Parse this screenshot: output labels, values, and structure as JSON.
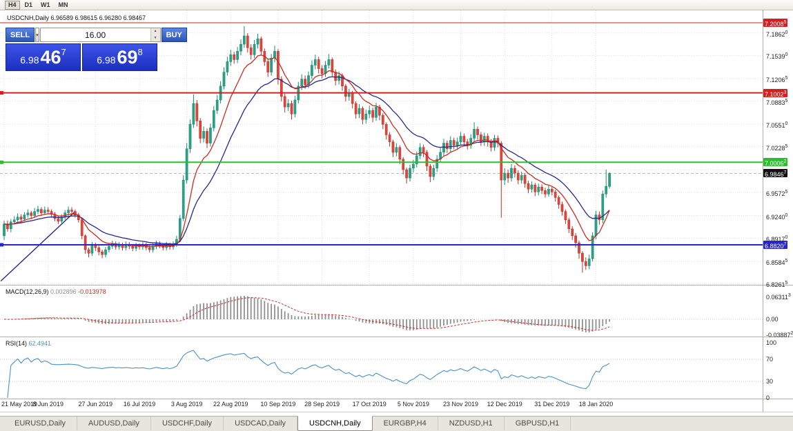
{
  "toolbar": {
    "timeframes": [
      {
        "label": "H4",
        "active": true
      },
      {
        "label": "D1",
        "active": false
      },
      {
        "label": "W1",
        "active": false
      },
      {
        "label": "MN",
        "active": false
      }
    ]
  },
  "chart": {
    "title": "USDCNH,Daily 6.96589 6.98615 6.96280 6.98467"
  },
  "icons": {
    "dropdown": "▾",
    "up": "▲",
    "down": "▼"
  },
  "trade_panel": {
    "sell_label": "SELL",
    "buy_label": "BUY",
    "volume": "16.00",
    "sell_price": {
      "prefix": "6.98",
      "big": "46",
      "sup": "7"
    },
    "buy_price": {
      "prefix": "6.98",
      "big": "69",
      "sup": "8"
    }
  },
  "chart_data": {
    "type": "candlestick",
    "symbol": "USDCNH",
    "timeframe": "Daily",
    "ohlc": {
      "open": "6.96589",
      "high": "6.98615",
      "low": "6.96280",
      "close": "6.98467"
    },
    "up_color": "#2aa186",
    "up_stroke": "#1d8a70",
    "down_color": "#e2443a",
    "down_stroke": "#b3332c",
    "candles": [
      [
        6.895,
        6.917,
        6.889,
        6.912
      ],
      [
        6.912,
        6.917,
        6.901,
        6.905
      ],
      [
        6.905,
        6.919,
        6.9,
        6.915
      ],
      [
        6.915,
        6.923,
        6.911,
        6.918
      ],
      [
        6.918,
        6.927,
        6.915,
        6.922
      ],
      [
        6.922,
        6.926,
        6.914,
        6.919
      ],
      [
        6.919,
        6.929,
        6.916,
        6.925
      ],
      [
        6.925,
        6.933,
        6.921,
        6.928
      ],
      [
        6.928,
        6.931,
        6.919,
        6.924
      ],
      [
        6.924,
        6.935,
        6.921,
        6.93
      ],
      [
        6.93,
        6.938,
        6.926,
        6.933
      ],
      [
        6.933,
        6.936,
        6.924,
        6.928
      ],
      [
        6.928,
        6.937,
        6.925,
        6.932
      ],
      [
        6.932,
        6.936,
        6.926,
        6.93
      ],
      [
        6.93,
        6.933,
        6.922,
        6.926
      ],
      [
        6.926,
        6.929,
        6.916,
        6.92
      ],
      [
        6.92,
        6.924,
        6.912,
        6.916
      ],
      [
        6.916,
        6.926,
        6.913,
        6.922
      ],
      [
        6.922,
        6.932,
        6.918,
        6.928
      ],
      [
        6.928,
        6.937,
        6.924,
        6.932
      ],
      [
        6.932,
        6.936,
        6.926,
        6.93
      ],
      [
        6.93,
        6.933,
        6.921,
        6.925
      ],
      [
        6.925,
        6.928,
        6.914,
        6.918
      ],
      [
        6.918,
        6.92,
        6.89,
        6.895
      ],
      [
        6.895,
        6.897,
        6.869,
        6.875
      ],
      [
        6.875,
        6.878,
        6.864,
        6.87
      ],
      [
        6.87,
        6.886,
        6.866,
        6.882
      ],
      [
        6.882,
        6.885,
        6.873,
        6.878
      ],
      [
        6.878,
        6.881,
        6.867,
        6.872
      ],
      [
        6.872,
        6.875,
        6.863,
        6.868
      ],
      [
        6.868,
        6.879,
        6.864,
        6.875
      ],
      [
        6.875,
        6.884,
        6.871,
        6.88
      ],
      [
        6.88,
        6.888,
        6.876,
        6.884
      ],
      [
        6.884,
        6.887,
        6.875,
        6.879
      ],
      [
        6.879,
        6.886,
        6.875,
        6.882
      ],
      [
        6.882,
        6.885,
        6.874,
        6.878
      ],
      [
        6.878,
        6.887,
        6.874,
        6.883
      ],
      [
        6.883,
        6.886,
        6.876,
        6.88
      ],
      [
        6.88,
        6.883,
        6.873,
        6.877
      ],
      [
        6.877,
        6.885,
        6.873,
        6.881
      ],
      [
        6.881,
        6.884,
        6.875,
        6.879
      ],
      [
        6.879,
        6.886,
        6.875,
        6.882
      ],
      [
        6.882,
        6.885,
        6.874,
        6.878
      ],
      [
        6.878,
        6.881,
        6.871,
        6.875
      ],
      [
        6.875,
        6.884,
        6.871,
        6.88
      ],
      [
        6.88,
        6.888,
        6.876,
        6.884
      ],
      [
        6.884,
        6.887,
        6.877,
        6.881
      ],
      [
        6.881,
        6.884,
        6.874,
        6.878
      ],
      [
        6.878,
        6.886,
        6.874,
        6.882
      ],
      [
        6.882,
        6.885,
        6.875,
        6.879
      ],
      [
        6.879,
        6.887,
        6.875,
        6.883
      ],
      [
        6.883,
        6.895,
        6.879,
        6.89
      ],
      [
        6.89,
        6.925,
        6.886,
        6.92
      ],
      [
        6.92,
        6.982,
        6.916,
        6.975
      ],
      [
        6.975,
        7.028,
        6.97,
        7.02
      ],
      [
        7.02,
        7.062,
        7.014,
        7.055
      ],
      [
        7.055,
        7.098,
        7.05,
        7.085
      ],
      [
        7.085,
        7.09,
        7.052,
        7.06
      ],
      [
        7.06,
        7.064,
        7.028,
        7.035
      ],
      [
        7.035,
        7.052,
        7.029,
        7.045
      ],
      [
        7.045,
        7.049,
        7.021,
        7.028
      ],
      [
        7.028,
        7.056,
        7.023,
        7.05
      ],
      [
        7.05,
        7.081,
        7.045,
        7.075
      ],
      [
        7.075,
        7.097,
        7.07,
        7.09
      ],
      [
        7.09,
        7.117,
        7.085,
        7.11
      ],
      [
        7.11,
        7.137,
        7.105,
        7.13
      ],
      [
        7.13,
        7.152,
        7.125,
        7.145
      ],
      [
        7.145,
        7.162,
        7.139,
        7.155
      ],
      [
        7.155,
        7.159,
        7.142,
        7.148
      ],
      [
        7.148,
        7.166,
        7.143,
        7.16
      ],
      [
        7.16,
        7.177,
        7.154,
        7.17
      ],
      [
        7.17,
        7.196,
        7.165,
        7.182
      ],
      [
        7.182,
        7.186,
        7.158,
        7.165
      ],
      [
        7.165,
        7.17,
        7.148,
        7.155
      ],
      [
        7.155,
        7.176,
        7.15,
        7.17
      ],
      [
        7.17,
        7.185,
        7.164,
        7.178
      ],
      [
        7.178,
        7.181,
        7.154,
        7.16
      ],
      [
        7.16,
        7.164,
        7.139,
        7.145
      ],
      [
        7.145,
        7.149,
        7.123,
        7.13
      ],
      [
        7.13,
        7.156,
        7.125,
        7.15
      ],
      [
        7.15,
        7.168,
        7.144,
        7.16
      ],
      [
        7.16,
        7.163,
        7.112,
        7.12
      ],
      [
        7.12,
        7.124,
        7.088,
        7.095
      ],
      [
        7.095,
        7.099,
        7.072,
        7.08
      ],
      [
        7.08,
        7.091,
        7.074,
        7.085
      ],
      [
        7.085,
        7.089,
        7.062,
        7.07
      ],
      [
        7.07,
        7.096,
        7.065,
        7.09
      ],
      [
        7.09,
        7.116,
        7.085,
        7.11
      ],
      [
        7.11,
        7.127,
        7.104,
        7.12
      ],
      [
        7.12,
        7.125,
        7.106,
        7.112
      ],
      [
        7.112,
        7.131,
        7.107,
        7.125
      ],
      [
        7.125,
        7.147,
        7.12,
        7.14
      ],
      [
        7.14,
        7.155,
        7.134,
        7.148
      ],
      [
        7.148,
        7.152,
        7.128,
        7.135
      ],
      [
        7.135,
        7.14,
        7.121,
        7.128
      ],
      [
        7.128,
        7.146,
        7.123,
        7.14
      ],
      [
        7.14,
        7.156,
        7.135,
        7.148
      ],
      [
        7.148,
        7.151,
        7.123,
        7.13
      ],
      [
        7.13,
        7.134,
        7.111,
        7.118
      ],
      [
        7.118,
        7.131,
        7.112,
        7.125
      ],
      [
        7.125,
        7.128,
        7.103,
        7.11
      ],
      [
        7.11,
        7.113,
        7.088,
        7.095
      ],
      [
        7.095,
        7.106,
        7.089,
        7.1
      ],
      [
        7.1,
        7.103,
        7.078,
        7.085
      ],
      [
        7.085,
        7.088,
        7.063,
        7.07
      ],
      [
        7.07,
        7.084,
        7.064,
        7.078
      ],
      [
        7.078,
        7.081,
        7.055,
        7.062
      ],
      [
        7.062,
        7.076,
        7.056,
        7.07
      ],
      [
        7.07,
        7.082,
        7.064,
        7.075
      ],
      [
        7.075,
        7.079,
        7.058,
        7.065
      ],
      [
        7.065,
        7.086,
        7.06,
        7.08
      ],
      [
        7.08,
        7.083,
        7.061,
        7.068
      ],
      [
        7.068,
        7.071,
        7.048,
        7.055
      ],
      [
        7.055,
        7.058,
        7.033,
        7.04
      ],
      [
        7.04,
        7.044,
        7.023,
        7.03
      ],
      [
        7.03,
        7.033,
        7.008,
        7.015
      ],
      [
        7.015,
        7.028,
        7.009,
        7.022
      ],
      [
        7.022,
        7.025,
        6.998,
        7.005
      ],
      [
        7.005,
        7.008,
        6.983,
        6.99
      ],
      [
        6.99,
        6.993,
        6.97,
        6.978
      ],
      [
        6.978,
        6.997,
        6.973,
        6.992
      ],
      [
        6.992,
        7.004,
        6.986,
        6.998
      ],
      [
        6.998,
        7.016,
        6.993,
        7.01
      ],
      [
        7.01,
        7.028,
        7.005,
        7.022
      ],
      [
        7.022,
        7.026,
        7.008,
        7.015
      ],
      [
        7.015,
        7.018,
        6.988,
        6.995
      ],
      [
        6.995,
        6.998,
        6.972,
        6.98
      ],
      [
        6.98,
        6.997,
        6.975,
        6.992
      ],
      [
        6.992,
        7.011,
        6.987,
        7.005
      ],
      [
        7.005,
        7.021,
        7.0,
        7.015
      ],
      [
        7.015,
        7.034,
        7.01,
        7.028
      ],
      [
        7.028,
        7.032,
        7.014,
        7.02
      ],
      [
        7.02,
        7.038,
        7.015,
        7.032
      ],
      [
        7.032,
        7.036,
        7.019,
        7.025
      ],
      [
        7.025,
        7.036,
        7.02,
        7.03
      ],
      [
        7.03,
        7.044,
        7.025,
        7.038
      ],
      [
        7.038,
        7.042,
        7.024,
        7.03
      ],
      [
        7.03,
        7.034,
        7.019,
        7.025
      ],
      [
        7.025,
        7.041,
        7.02,
        7.035
      ],
      [
        7.035,
        7.058,
        7.03,
        7.048
      ],
      [
        7.048,
        7.052,
        7.033,
        7.04
      ],
      [
        7.04,
        7.044,
        7.024,
        7.03
      ],
      [
        7.03,
        7.043,
        7.024,
        7.038
      ],
      [
        7.038,
        7.042,
        7.023,
        7.03
      ],
      [
        7.03,
        7.034,
        7.016,
        7.022
      ],
      [
        7.022,
        7.04,
        7.017,
        7.035
      ],
      [
        7.035,
        7.039,
        7.022,
        7.028
      ],
      [
        7.028,
        7.031,
        6.921,
        6.975
      ],
      [
        6.975,
        6.992,
        6.968,
        6.985
      ],
      [
        6.985,
        6.99,
        6.971,
        6.978
      ],
      [
        6.978,
        6.998,
        6.973,
        6.992
      ],
      [
        6.992,
        6.996,
        6.979,
        6.985
      ],
      [
        6.985,
        6.989,
        6.969,
        6.975
      ],
      [
        6.975,
        6.987,
        6.97,
        6.982
      ],
      [
        6.982,
        6.985,
        6.964,
        6.97
      ],
      [
        6.97,
        6.974,
        6.956,
        6.962
      ],
      [
        6.962,
        6.973,
        6.957,
        6.968
      ],
      [
        6.968,
        6.971,
        6.952,
        6.958
      ],
      [
        6.958,
        6.97,
        6.953,
        6.965
      ],
      [
        6.965,
        6.969,
        6.955,
        6.96
      ],
      [
        6.96,
        6.964,
        6.95,
        6.955
      ],
      [
        6.955,
        6.967,
        6.951,
        6.962
      ],
      [
        6.962,
        6.966,
        6.953,
        6.958
      ],
      [
        6.958,
        6.961,
        6.944,
        6.95
      ],
      [
        6.95,
        6.953,
        6.934,
        6.94
      ],
      [
        6.94,
        6.944,
        6.924,
        6.93
      ],
      [
        6.93,
        6.933,
        6.912,
        6.918
      ],
      [
        6.918,
        6.921,
        6.899,
        6.905
      ],
      [
        6.905,
        6.909,
        6.889,
        6.895
      ],
      [
        6.895,
        6.899,
        6.878,
        6.885
      ],
      [
        6.885,
        6.888,
        6.862,
        6.87
      ],
      [
        6.87,
        6.873,
        6.842,
        6.858
      ],
      [
        6.858,
        6.864,
        6.846,
        6.852
      ],
      [
        6.852,
        6.868,
        6.847,
        6.862
      ],
      [
        6.862,
        6.9,
        6.858,
        6.895
      ],
      [
        6.895,
        6.931,
        6.89,
        6.925
      ],
      [
        6.925,
        6.93,
        6.911,
        6.918
      ],
      [
        6.918,
        6.96,
        6.913,
        6.955
      ],
      [
        6.955,
        6.99,
        6.95,
        6.966
      ],
      [
        6.96589,
        6.98615,
        6.9628,
        6.98467
      ]
    ],
    "x_labels": [
      {
        "i": 0,
        "t": "21 May 2019"
      },
      {
        "i": 13,
        "t": "8 Jun 2019"
      },
      {
        "i": 27,
        "t": "27 Jun 2019"
      },
      {
        "i": 40,
        "t": "16 Jul 2019"
      },
      {
        "i": 54,
        "t": "3 Aug 2019"
      },
      {
        "i": 67,
        "t": "22 Aug 2019"
      },
      {
        "i": 81,
        "t": "10 Sep 2019"
      },
      {
        "i": 94,
        "t": "28 Sep 2019"
      },
      {
        "i": 108,
        "t": "17 Oct 2019"
      },
      {
        "i": 121,
        "t": "5 Nov 2019"
      },
      {
        "i": 135,
        "t": "23 Nov 2019"
      },
      {
        "i": 148,
        "t": "12 Dec 2019"
      },
      {
        "i": 162,
        "t": "31 Dec 2019"
      },
      {
        "i": 175,
        "t": "18 Jan 2020"
      }
    ],
    "y_ticks": [
      "7.18620",
      "7.15390",
      "7.12065",
      "7.08835",
      "7.05510",
      "7.02285",
      "6.95725",
      "6.92400",
      "6.89170",
      "6.85845",
      "6.82615"
    ],
    "grid_extra": [
      6.98955
    ],
    "hlines": [
      {
        "price": 7.20085,
        "label": "7.20085",
        "color": "#d02020",
        "width": 1,
        "handle": false
      },
      {
        "price": 7.10023,
        "label": "7.10023",
        "color": "#d02020",
        "width": 2,
        "handle": true
      },
      {
        "price": 7.00062,
        "label": "7.00062",
        "color": "#2dbe2d",
        "width": 2,
        "handle": true
      },
      {
        "price": 6.88207,
        "label": "6.88207",
        "color": "#2626cc",
        "width": 2,
        "handle": true
      }
    ],
    "bid_line": {
      "price": 6.98467,
      "label": "6.98467",
      "color": "#b8b8c0",
      "badge_bg": "#111111"
    },
    "trendline": {
      "i1": -1,
      "p1": 6.83,
      "i2": 21,
      "p2": 6.93,
      "color": "#26268c"
    },
    "ma": [
      {
        "period": 22,
        "color": "#26268c",
        "name": "slow-ma"
      },
      {
        "period": 10,
        "color": "#cc2a1e",
        "name": "fast-ma"
      }
    ],
    "indicators": {
      "macd": {
        "label": "MACD(12,26,9)",
        "value_main": "0.002896",
        "value_signal": "-0.013978",
        "fast": 12,
        "slow": 26,
        "signal": 9,
        "ticks": [
          "0.063113",
          "0.00",
          "-0.038872"
        ],
        "hist_color": "#8f8f8f",
        "signal_color": "#cc2a1e"
      },
      "rsi": {
        "label": "RSI(14)",
        "value": "62.4941",
        "period": 14,
        "ticks": [
          "100",
          "70",
          "30",
          "0"
        ],
        "levels": [
          70,
          30
        ],
        "color": "#4a90c8"
      }
    }
  },
  "tabs": [
    {
      "label": "EURUSD,Daily",
      "active": false
    },
    {
      "label": "AUDUSD,Daily",
      "active": false
    },
    {
      "label": "USDCHF,Daily",
      "active": false
    },
    {
      "label": "USDCAD,Daily",
      "active": false
    },
    {
      "label": "USDCNH,Daily",
      "active": true
    },
    {
      "label": "EURGBP,H4",
      "active": false
    },
    {
      "label": "NZDUSD,H1",
      "active": false
    },
    {
      "label": "GBPUSD,H1",
      "active": false
    }
  ]
}
